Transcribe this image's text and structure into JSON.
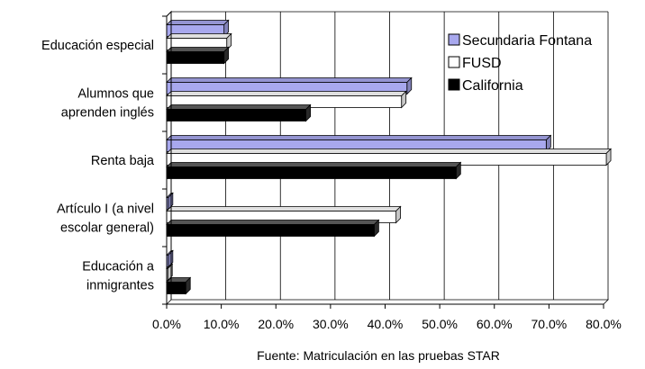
{
  "chart_data": {
    "type": "bar",
    "orientation": "horizontal",
    "categories": [
      [
        "Educación especial"
      ],
      [
        "Alumnos que",
        "aprenden inglés"
      ],
      [
        "Renta baja"
      ],
      [
        "Artículo I (a nivel",
        "escolar general)"
      ],
      [
        "Educación a",
        "inmigrantes"
      ]
    ],
    "series": [
      {
        "name": "Secundaria Fontana",
        "color": "#a8a8ee",
        "values": [
          10.5,
          44.0,
          69.5,
          0.3,
          0.3
        ]
      },
      {
        "name": "FUSD",
        "color": "#ffffff",
        "values": [
          11.0,
          43.0,
          80.5,
          42.0,
          0.2
        ]
      },
      {
        "name": "California",
        "color": "#000000",
        "values": [
          10.5,
          25.5,
          53.0,
          38.0,
          3.5
        ]
      }
    ],
    "xlim": [
      0,
      80
    ],
    "xticks": [
      "0.0%",
      "10.0%",
      "20.0%",
      "30.0%",
      "40.0%",
      "50.0%",
      "60.0%",
      "70.0%",
      "80.0%"
    ],
    "legend_position": "top-right",
    "grid": "vertical",
    "note": "Fuente: Matriculación en las pruebas STAR"
  }
}
